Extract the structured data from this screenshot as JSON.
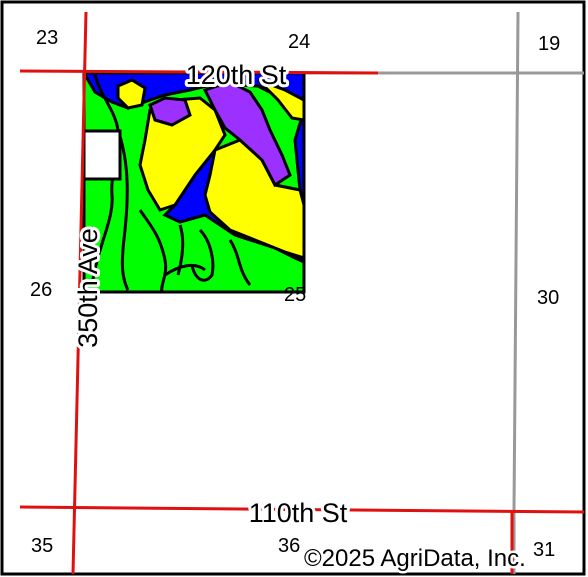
{
  "map": {
    "sections": [
      "23",
      "24",
      "19",
      "26",
      "25",
      "30",
      "35",
      "36",
      "31"
    ],
    "roads": {
      "north": "120th St",
      "south": "110th St",
      "west": "350th Ave"
    },
    "copyright": "©2025 AgriData, Inc.",
    "colors": {
      "soil_green": "#00ff00",
      "soil_yellow": "#ffff00",
      "soil_blue": "#0000ff",
      "soil_purple": "#9b30ff",
      "road_red": "#e01010",
      "section_line_gray": "#999999",
      "boundary": "#000000"
    }
  }
}
